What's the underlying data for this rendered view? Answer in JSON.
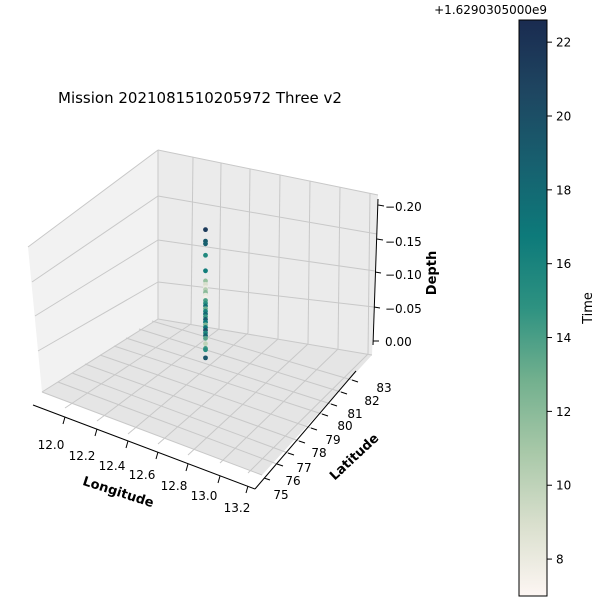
{
  "chart_data": {
    "type": "scatter",
    "projection": "3d",
    "title": "Mission 2021081510205972 Three v2",
    "xlabel": "Longitude",
    "ylabel": "Latitude",
    "zlabel": "Depth",
    "x_ticks": [
      "12.0",
      "12.2",
      "12.4",
      "12.6",
      "12.8",
      "13.0",
      "13.2"
    ],
    "y_ticks": [
      "75",
      "76",
      "77",
      "78",
      "79",
      "80",
      "81",
      "82",
      "83"
    ],
    "z_ticks": [
      "0.00",
      "−0.05",
      "−0.10",
      "−0.15",
      "−0.20"
    ],
    "xlim": [
      11.9,
      13.25
    ],
    "ylim": [
      74.5,
      83.5
    ],
    "zlim": [
      0.02,
      -0.205
    ],
    "z_inverted": true,
    "grid": true,
    "colorbar": {
      "label": "Time",
      "offset_text": "+1.6290305000e9",
      "ticks": [
        "8",
        "10",
        "12",
        "14",
        "16",
        "18",
        "20",
        "22"
      ],
      "range": [
        7.0,
        22.6
      ],
      "colormap": [
        "#fdf6f3",
        "#d9dfcd",
        "#a8c8a8",
        "#72b08e",
        "#2e9281",
        "#0d7a7a",
        "#17606f",
        "#1e4661",
        "#1a2b50"
      ]
    },
    "points": [
      {
        "lon": 12.5,
        "lat": 79,
        "depth": -0.165,
        "time": 21.5
      },
      {
        "lon": 12.5,
        "lat": 79,
        "depth": -0.148,
        "time": 19.2
      },
      {
        "lon": 12.5,
        "lat": 79,
        "depth": -0.144,
        "time": 18.8
      },
      {
        "lon": 12.5,
        "lat": 79,
        "depth": -0.127,
        "time": 15.5
      },
      {
        "lon": 12.5,
        "lat": 79,
        "depth": -0.104,
        "time": 16.5
      },
      {
        "lon": 12.5,
        "lat": 79,
        "depth": -0.089,
        "time": 11.5
      },
      {
        "lon": 12.5,
        "lat": 79,
        "depth": -0.084,
        "time": 9.0
      },
      {
        "lon": 12.5,
        "lat": 79,
        "depth": -0.079,
        "time": 8.0
      },
      {
        "lon": 12.5,
        "lat": 79,
        "depth": -0.076,
        "time": 10.5
      },
      {
        "lon": 12.5,
        "lat": 79,
        "depth": -0.072,
        "time": 12.0
      },
      {
        "lon": 12.5,
        "lat": 79,
        "depth": -0.068,
        "time": 8.2
      },
      {
        "lon": 12.5,
        "lat": 79,
        "depth": -0.064,
        "time": 7.6
      },
      {
        "lon": 12.5,
        "lat": 79,
        "depth": -0.06,
        "time": 14.0
      },
      {
        "lon": 12.5,
        "lat": 79,
        "depth": -0.056,
        "time": 15.0
      },
      {
        "lon": 12.5,
        "lat": 79,
        "depth": -0.052,
        "time": 17.5
      },
      {
        "lon": 12.5,
        "lat": 79,
        "depth": -0.048,
        "time": 13.0
      },
      {
        "lon": 12.5,
        "lat": 79,
        "depth": -0.044,
        "time": 16.0
      },
      {
        "lon": 12.5,
        "lat": 79,
        "depth": -0.04,
        "time": 18.0
      },
      {
        "lon": 12.5,
        "lat": 79,
        "depth": -0.036,
        "time": 14.5
      },
      {
        "lon": 12.5,
        "lat": 79,
        "depth": -0.032,
        "time": 19.0
      },
      {
        "lon": 12.5,
        "lat": 79,
        "depth": -0.028,
        "time": 16.8
      },
      {
        "lon": 12.5,
        "lat": 79,
        "depth": -0.024,
        "time": 12.5
      },
      {
        "lon": 12.5,
        "lat": 79,
        "depth": -0.02,
        "time": 17.0
      },
      {
        "lon": 12.5,
        "lat": 79,
        "depth": -0.016,
        "time": 20.0
      },
      {
        "lon": 12.5,
        "lat": 79,
        "depth": -0.012,
        "time": 15.8
      },
      {
        "lon": 12.5,
        "lat": 79,
        "depth": -0.008,
        "time": 18.5
      },
      {
        "lon": 12.5,
        "lat": 79,
        "depth": -0.004,
        "time": 13.5
      },
      {
        "lon": 12.5,
        "lat": 79,
        "depth": 0.004,
        "time": 10.0
      },
      {
        "lon": 12.5,
        "lat": 79,
        "depth": 0.011,
        "time": 14.2
      },
      {
        "lon": 12.5,
        "lat": 79,
        "depth": 0.013,
        "time": 15.2
      },
      {
        "lon": 12.5,
        "lat": 79,
        "depth": 0.025,
        "time": 19.5
      }
    ]
  }
}
